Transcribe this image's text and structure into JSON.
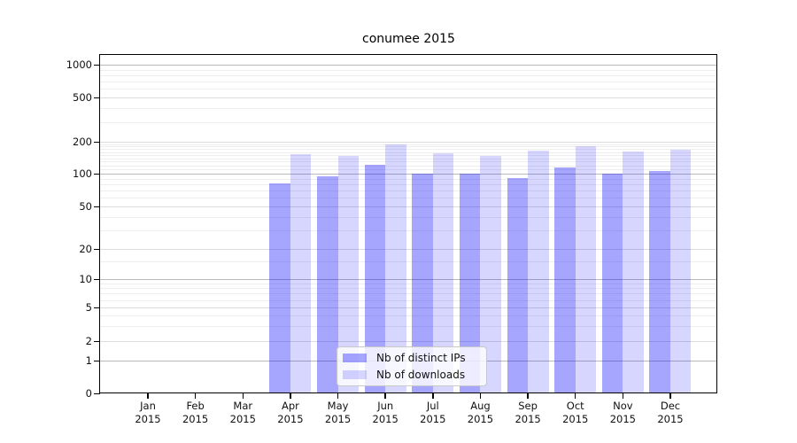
{
  "chart_data": {
    "type": "bar",
    "title": "conumee 2015",
    "x_months": [
      "Jan",
      "Feb",
      "Mar",
      "Apr",
      "May",
      "Jun",
      "Jul",
      "Aug",
      "Sep",
      "Oct",
      "Nov",
      "Dec"
    ],
    "x_year": "2015",
    "y_ticks": [
      0,
      1,
      2,
      5,
      10,
      20,
      50,
      100,
      200,
      500,
      1000
    ],
    "ylim": [
      0,
      1250
    ],
    "yscale": "symlog-like",
    "grid": true,
    "legend_position": "lower-center",
    "series": [
      {
        "name": "Nb of distinct IPs",
        "color": "rgba(0,0,255,0.35)",
        "values": [
          0,
          0,
          0,
          82,
          94,
          121,
          100,
          100,
          91,
          114,
          100,
          106
        ]
      },
      {
        "name": "Nb of downloads",
        "color": "rgba(0,0,255,0.16)",
        "values": [
          0,
          0,
          0,
          153,
          146,
          190,
          157,
          148,
          165,
          183,
          162,
          168
        ]
      }
    ]
  },
  "colors": {
    "grid_major": "#b9b9b9",
    "grid_mid": "#dcdcdc",
    "grid_minor": "#eeeeee",
    "spine": "#000000",
    "text": "#111111"
  }
}
